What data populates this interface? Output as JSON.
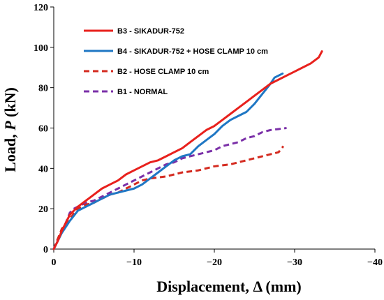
{
  "chart_data": {
    "type": "line",
    "xlabel": "Displacement, Δ  (mm)",
    "ylabel_prefix": "Load, ",
    "ylabel_var": "P",
    "ylabel_suffix": " (kN)",
    "xlim": [
      0,
      -40
    ],
    "ylim": [
      0,
      120
    ],
    "x_ticks": [
      0,
      -10,
      -20,
      -30,
      -40
    ],
    "x_tick_labels": [
      "0",
      "−10",
      "−20",
      "−30",
      "−40"
    ],
    "y_ticks": [
      0,
      20,
      40,
      60,
      80,
      100,
      120
    ],
    "y_tick_labels": [
      "0",
      "20",
      "40",
      "60",
      "80",
      "100",
      "120"
    ],
    "grid": false,
    "legend_position": "top-left",
    "series": [
      {
        "name": "B3 - SIKADUR-752",
        "color": "#e8211d",
        "dash": "solid",
        "points": [
          [
            0,
            0
          ],
          [
            -0.5,
            4
          ],
          [
            -1,
            9
          ],
          [
            -1.5,
            13
          ],
          [
            -2,
            17
          ],
          [
            -3,
            21
          ],
          [
            -4,
            24
          ],
          [
            -5,
            27
          ],
          [
            -6,
            30
          ],
          [
            -7,
            32
          ],
          [
            -8,
            34
          ],
          [
            -9,
            37
          ],
          [
            -10,
            39
          ],
          [
            -11,
            41
          ],
          [
            -12,
            43
          ],
          [
            -13,
            44
          ],
          [
            -14,
            46
          ],
          [
            -15,
            48
          ],
          [
            -16,
            50
          ],
          [
            -17,
            53
          ],
          [
            -18,
            56
          ],
          [
            -19,
            59
          ],
          [
            -20,
            61
          ],
          [
            -21,
            64
          ],
          [
            -22,
            67
          ],
          [
            -23,
            70
          ],
          [
            -24,
            73
          ],
          [
            -25,
            76
          ],
          [
            -26,
            79
          ],
          [
            -27,
            82
          ],
          [
            -28,
            84
          ],
          [
            -29,
            86
          ],
          [
            -30,
            88
          ],
          [
            -31,
            90
          ],
          [
            -32,
            92
          ],
          [
            -33,
            95
          ],
          [
            -33.4,
            98
          ]
        ]
      },
      {
        "name": "B4 - SIKADUR-752 + HOSE CLAMP 10 cm",
        "color": "#1f77c4",
        "dash": "solid",
        "points": [
          [
            0,
            0
          ],
          [
            -0.5,
            4
          ],
          [
            -1,
            8
          ],
          [
            -2,
            14
          ],
          [
            -3,
            19
          ],
          [
            -4,
            21
          ],
          [
            -5,
            23
          ],
          [
            -6,
            25
          ],
          [
            -7,
            27
          ],
          [
            -8,
            28
          ],
          [
            -9,
            29
          ],
          [
            -10,
            30
          ],
          [
            -11,
            32
          ],
          [
            -12,
            35
          ],
          [
            -13,
            38
          ],
          [
            -14,
            41
          ],
          [
            -15,
            44
          ],
          [
            -16,
            46
          ],
          [
            -17,
            47
          ],
          [
            -18,
            51
          ],
          [
            -19,
            54
          ],
          [
            -20,
            57
          ],
          [
            -21,
            61
          ],
          [
            -22,
            64
          ],
          [
            -23,
            66
          ],
          [
            -24,
            68
          ],
          [
            -25,
            72
          ],
          [
            -26,
            77
          ],
          [
            -27,
            82
          ],
          [
            -27.5,
            85
          ],
          [
            -28.5,
            87
          ]
        ]
      },
      {
        "name": "B2 - HOSE CLAMP 10 cm",
        "color": "#d42a1f",
        "dash": "dashed",
        "points": [
          [
            0,
            0
          ],
          [
            -0.5,
            5
          ],
          [
            -1,
            10
          ],
          [
            -2,
            15
          ],
          [
            -3,
            20
          ],
          [
            -4,
            22
          ],
          [
            -5,
            23
          ],
          [
            -6,
            25
          ],
          [
            -7,
            27
          ],
          [
            -8,
            28
          ],
          [
            -9,
            30
          ],
          [
            -10,
            32
          ],
          [
            -11,
            34
          ],
          [
            -12,
            35
          ],
          [
            -14,
            36
          ],
          [
            -16,
            38
          ],
          [
            -18,
            39
          ],
          [
            -20,
            41
          ],
          [
            -22,
            42
          ],
          [
            -24,
            44
          ],
          [
            -26,
            46
          ],
          [
            -27,
            47
          ],
          [
            -28,
            48
          ],
          [
            -28.6,
            51
          ]
        ]
      },
      {
        "name": "B1 - NORMAL",
        "color": "#7b30a8",
        "dash": "dashed",
        "points": [
          [
            0,
            0
          ],
          [
            -0.5,
            5
          ],
          [
            -1,
            9
          ],
          [
            -1.5,
            13
          ],
          [
            -2,
            18
          ],
          [
            -2.5,
            20
          ],
          [
            -3,
            21
          ],
          [
            -4,
            23
          ],
          [
            -5,
            24
          ],
          [
            -6,
            26
          ],
          [
            -7,
            28
          ],
          [
            -8,
            30
          ],
          [
            -9,
            32
          ],
          [
            -10,
            34
          ],
          [
            -11,
            36
          ],
          [
            -12,
            38
          ],
          [
            -13,
            40
          ],
          [
            -14,
            42
          ],
          [
            -15,
            43
          ],
          [
            -16,
            45
          ],
          [
            -17,
            46
          ],
          [
            -18,
            47
          ],
          [
            -19,
            48
          ],
          [
            -20,
            49
          ],
          [
            -21,
            51
          ],
          [
            -22,
            52
          ],
          [
            -23,
            53
          ],
          [
            -24,
            55
          ],
          [
            -25,
            56
          ],
          [
            -26,
            58
          ],
          [
            -27,
            59
          ],
          [
            -28,
            59.5
          ],
          [
            -29,
            60
          ]
        ]
      }
    ]
  }
}
